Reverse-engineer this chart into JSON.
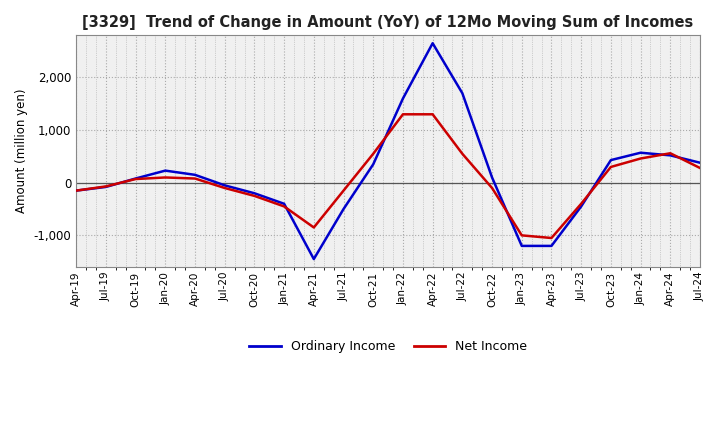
{
  "title": "[3329]  Trend of Change in Amount (YoY) of 12Mo Moving Sum of Incomes",
  "ylabel": "Amount (million yen)",
  "ylim": [
    -1600,
    2800
  ],
  "yticks": [
    -1000,
    0,
    1000,
    2000
  ],
  "background_color": "#ffffff",
  "plot_bg_color": "#f0f0f0",
  "grid_color": "#aaaaaa",
  "ordinary_income_color": "#0000cc",
  "net_income_color": "#cc0000",
  "x_labels": [
    "Apr-19",
    "Jul-19",
    "Oct-19",
    "Jan-20",
    "Apr-20",
    "Jul-20",
    "Oct-20",
    "Jan-21",
    "Apr-21",
    "Jul-21",
    "Oct-21",
    "Jan-22",
    "Apr-22",
    "Jul-22",
    "Oct-22",
    "Jan-23",
    "Apr-23",
    "Jul-23",
    "Oct-23",
    "Jan-24",
    "Apr-24",
    "Jul-24"
  ],
  "ordinary_income": [
    -150,
    -80,
    80,
    230,
    150,
    -50,
    -200,
    -400,
    -1450,
    -500,
    350,
    1600,
    2650,
    1700,
    100,
    -1200,
    -1200,
    -450,
    430,
    570,
    520,
    380
  ],
  "net_income": [
    -150,
    -70,
    70,
    100,
    80,
    -100,
    -250,
    -450,
    -850,
    -150,
    550,
    1300,
    1300,
    550,
    -100,
    -1000,
    -1050,
    -400,
    300,
    460,
    560,
    280
  ]
}
